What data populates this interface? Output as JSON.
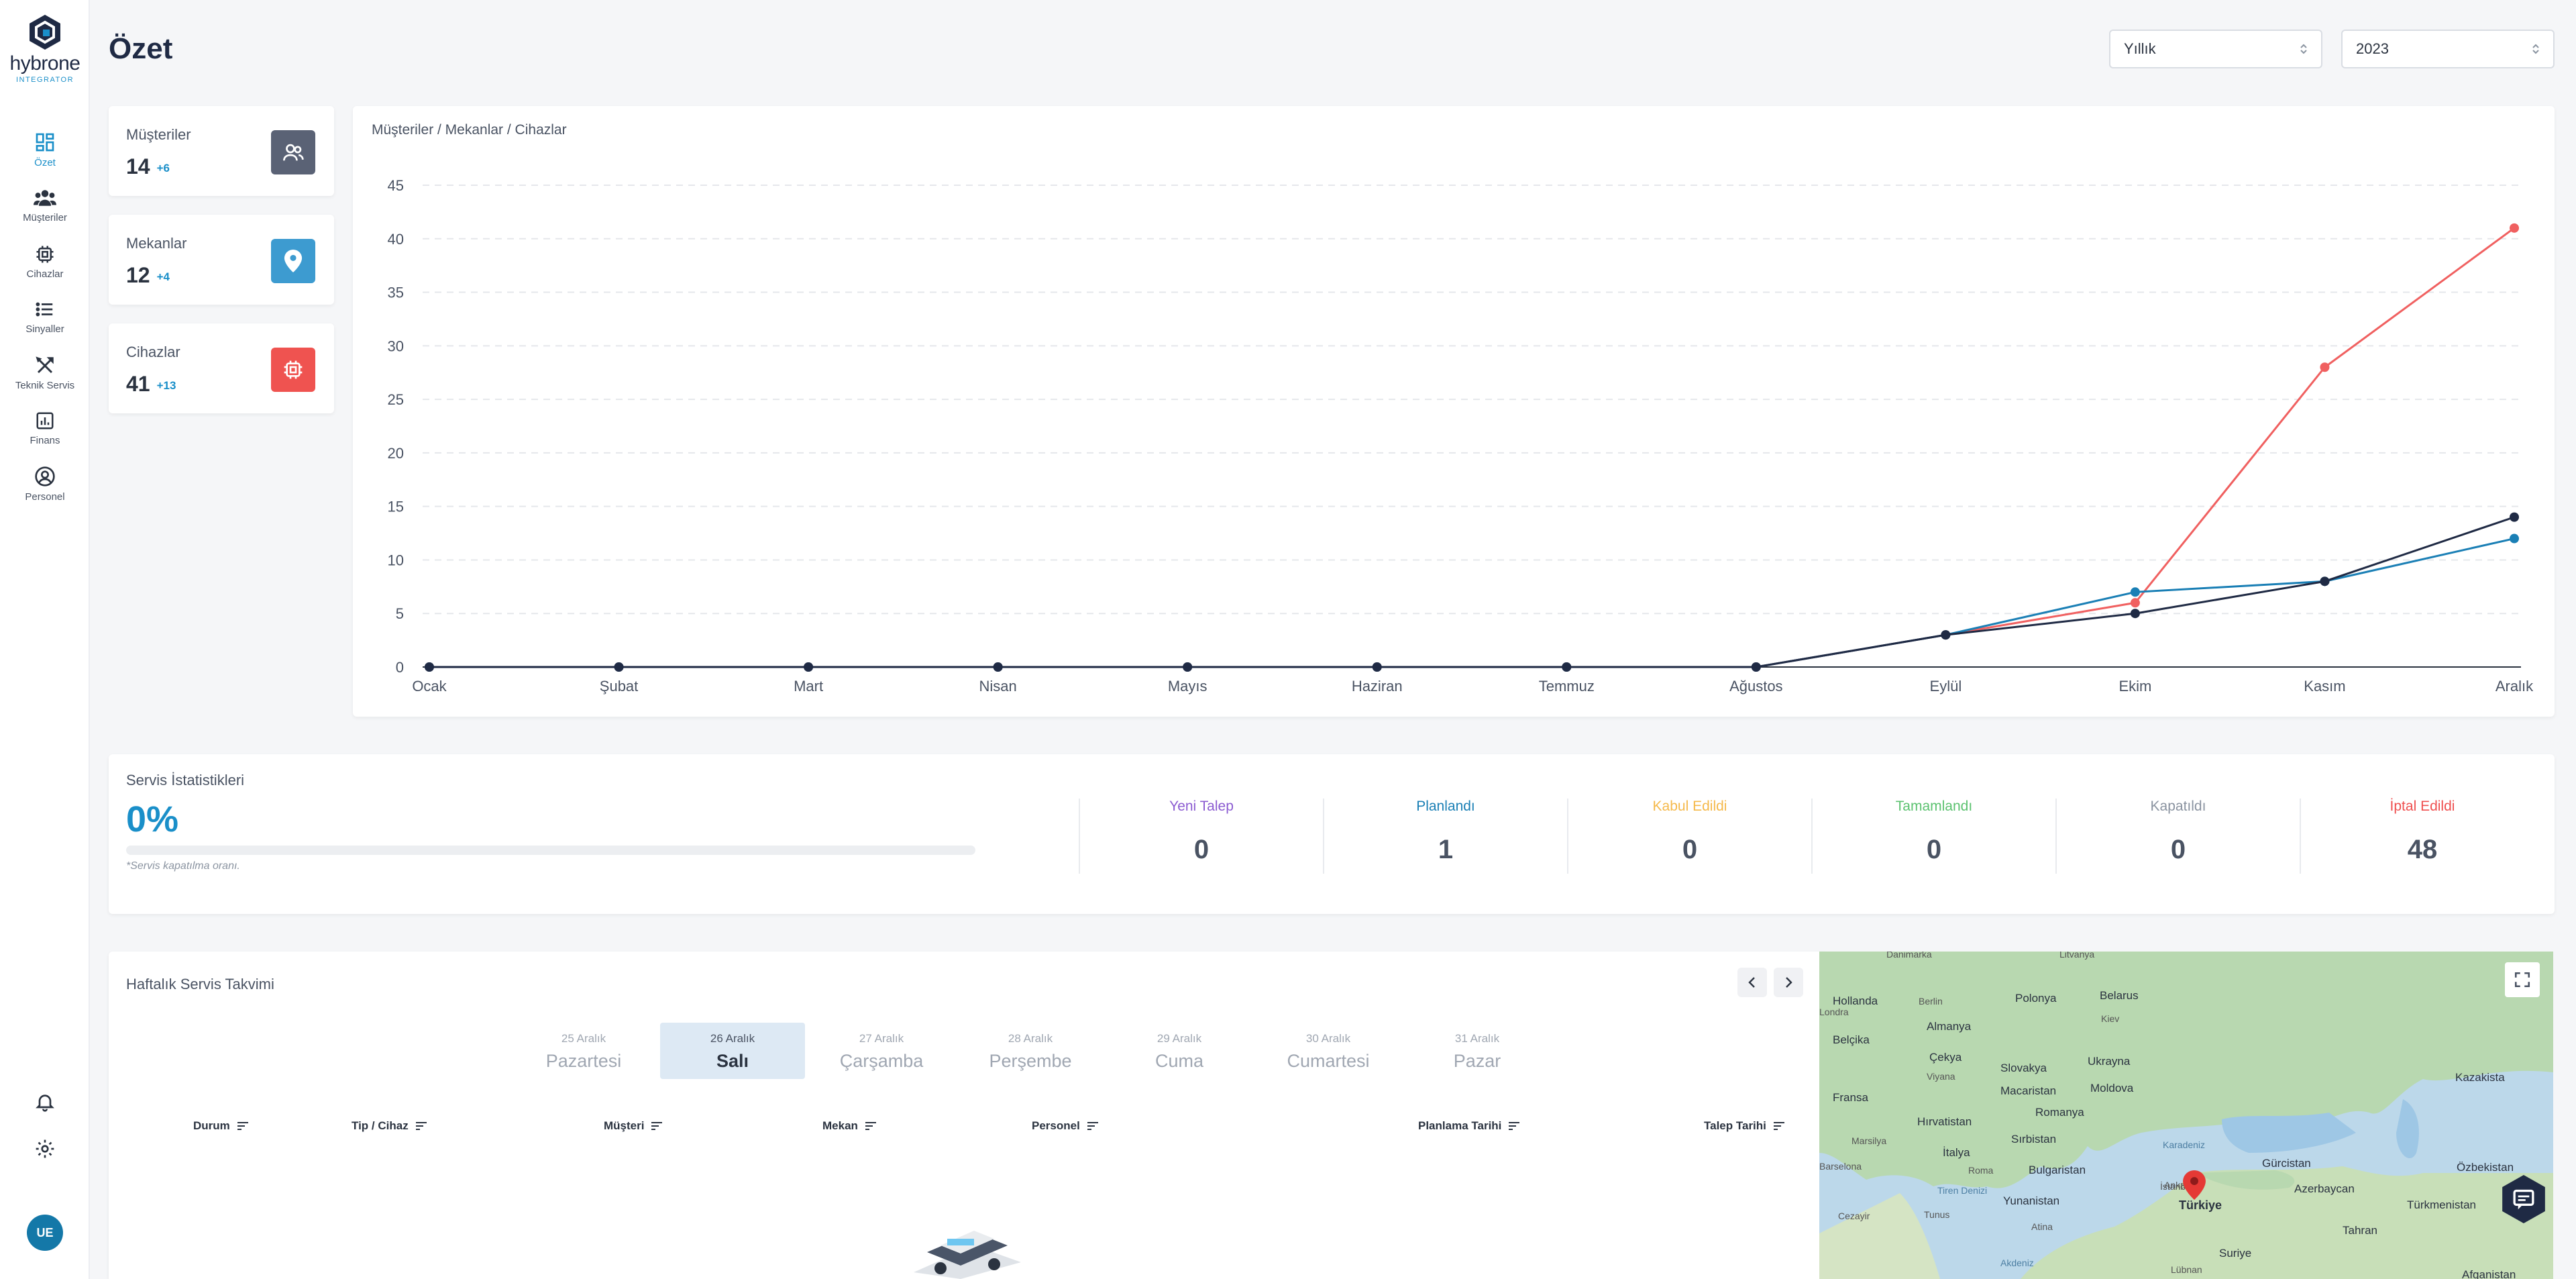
{
  "app": {
    "logo_name": "hybrone",
    "logo_sub": "INTEGRATOR"
  },
  "sidebar": {
    "items": [
      {
        "label": "Özet",
        "icon": "dashboard-icon",
        "active": true
      },
      {
        "label": "Müşteriler",
        "icon": "users-icon"
      },
      {
        "label": "Cihazlar",
        "icon": "chip-icon"
      },
      {
        "label": "Sinyaller",
        "icon": "list-icon"
      },
      {
        "label": "Teknik Servis",
        "icon": "tools-icon"
      },
      {
        "label": "Finans",
        "icon": "bar-chart-icon"
      },
      {
        "label": "Personel",
        "icon": "user-circle-icon"
      }
    ],
    "avatar": "UE"
  },
  "header": {
    "title": "Özet",
    "period_select": "Yıllık",
    "year_select": "2023"
  },
  "stats": [
    {
      "label": "Müşteriler",
      "value": "14",
      "delta": "+6",
      "icon": "users-icon",
      "color": "#5a6275"
    },
    {
      "label": "Mekanlar",
      "value": "12",
      "delta": "+4",
      "icon": "location-pin-icon",
      "color": "#3d9bd0"
    },
    {
      "label": "Cihazlar",
      "value": "41",
      "delta": "+13",
      "icon": "chip-icon",
      "color": "#ef5350"
    }
  ],
  "chart_title": "Müşteriler / Mekanlar / Cihazlar",
  "chart_data": {
    "type": "line",
    "categories": [
      "Ocak",
      "Şubat",
      "Mart",
      "Nisan",
      "Mayıs",
      "Haziran",
      "Temmuz",
      "Ağustos",
      "Eylül",
      "Ekim",
      "Kasım",
      "Aralık"
    ],
    "ylim": [
      0,
      45
    ],
    "yticks": [
      0,
      5,
      10,
      15,
      20,
      25,
      30,
      35,
      40,
      45
    ],
    "grid": true,
    "series": [
      {
        "color": "#f06060",
        "values": [
          0,
          0,
          0,
          0,
          0,
          0,
          0,
          0,
          3,
          6,
          28,
          41
        ]
      },
      {
        "color": "#1a7fb5",
        "values": [
          0,
          0,
          0,
          0,
          0,
          0,
          0,
          0,
          3,
          7,
          8,
          12
        ]
      },
      {
        "color": "#1f2a44",
        "values": [
          0,
          0,
          0,
          0,
          0,
          0,
          0,
          0,
          3,
          5,
          8,
          14
        ]
      }
    ]
  },
  "service": {
    "title": "Servis İstatistikleri",
    "percent": "0%",
    "progress": 0,
    "note": "*Servis kapatılma oranı.",
    "columns": [
      {
        "label": "Yeni Talep",
        "value": "0",
        "color": "#8b5bd1"
      },
      {
        "label": "Planlandı",
        "value": "1",
        "color": "#1a7fb5"
      },
      {
        "label": "Kabul Edildi",
        "value": "0",
        "color": "#f5b94a"
      },
      {
        "label": "Tamamlandı",
        "value": "0",
        "color": "#5cc270"
      },
      {
        "label": "Kapatıldı",
        "value": "0",
        "color": "#8a93a0"
      },
      {
        "label": "İptal Edildi",
        "value": "48",
        "color": "#ef4f4f"
      }
    ]
  },
  "weekly": {
    "title": "Haftalık Servis Takvimi",
    "days": [
      {
        "date": "25 Aralık",
        "name": "Pazartesi"
      },
      {
        "date": "26 Aralık",
        "name": "Salı",
        "active": true
      },
      {
        "date": "27 Aralık",
        "name": "Çarşamba"
      },
      {
        "date": "28 Aralık",
        "name": "Perşembe"
      },
      {
        "date": "29 Aralık",
        "name": "Cuma"
      },
      {
        "date": "30 Aralık",
        "name": "Cumartesi"
      },
      {
        "date": "31 Aralık",
        "name": "Pazar"
      }
    ],
    "columns": [
      "Durum",
      "Tip / Cihaz",
      "Müşteri",
      "Mekan",
      "Personel",
      "Planlama Tarihi",
      "Talep Tarihi"
    ]
  },
  "map": {
    "labels": [
      "Danimarka",
      "Litvanya",
      "Hollanda",
      "Berlin",
      "Polonya",
      "Belarus",
      "Londra",
      "Almanya",
      "Kiev",
      "Belçika",
      "Çekya",
      "Slovakya",
      "Ukrayna",
      "Fransa",
      "Viyana",
      "Macaristan",
      "Moldova",
      "Kazakista",
      "Hırvatistan",
      "Romanya",
      "Marsilya",
      "Sırbistan",
      "Barselona",
      "Bulgaristan",
      "Karadeniz",
      "Gürcistan",
      "Özbekistan",
      "Roma",
      "İtalya",
      "Yunanistan",
      "İstanbul",
      "Ankara",
      "Türkiye",
      "Azerbaycan",
      "Türkmenistan",
      "Tiren Denizi",
      "Cezayir",
      "Tunus",
      "Atina",
      "Tahran",
      "Akdeniz",
      "Suriye",
      "Lübnan",
      "Afganistan"
    ]
  }
}
